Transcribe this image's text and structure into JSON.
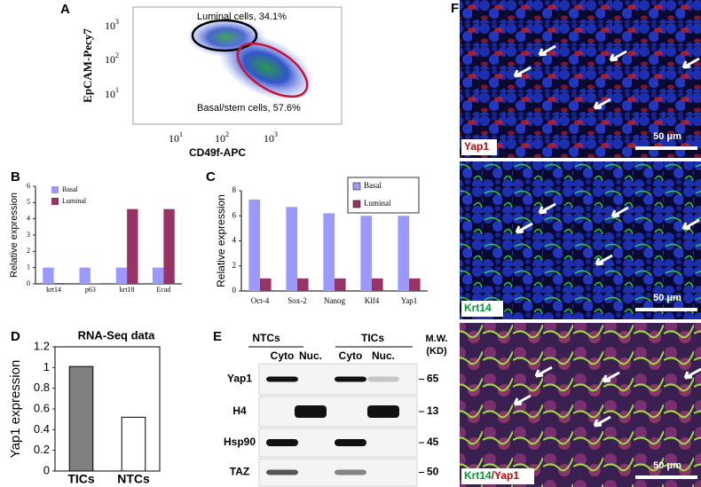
{
  "flow": {
    "label": "A",
    "y_label": "EpCAM-Pecy7",
    "x_label": "CD49f-APC",
    "ticks": [
      {
        "base": "10",
        "exp": "1"
      },
      {
        "base": "10",
        "exp": "2"
      },
      {
        "base": "10",
        "exp": "3"
      }
    ],
    "gates": [
      "Luminal cells, 34.1%",
      "Basal/stem cells, 57.6%"
    ]
  },
  "chart_data": [
    {
      "label": "B",
      "type": "bar",
      "y_label": "Relative expression",
      "categories": [
        "krt14",
        "p63",
        "krt18",
        "Ecad"
      ],
      "series": [
        {
          "name": "Basal",
          "color": "#9999ff",
          "values": [
            1.0,
            1.0,
            1.0,
            1.0
          ]
        },
        {
          "name": "Luminal",
          "color": "#993366",
          "values": [
            0.05,
            0.02,
            4.6,
            4.6
          ]
        }
      ],
      "ylim": [
        0,
        6
      ],
      "yticks": [
        0,
        1,
        2,
        3,
        4,
        5,
        6
      ]
    },
    {
      "label": "C",
      "type": "bar",
      "y_label": "Relative expression",
      "categories": [
        "Oct-4",
        "Sox-2",
        "Nanog",
        "Klf4",
        "Yap1"
      ],
      "series": [
        {
          "name": "Basal",
          "color": "#9999ff",
          "values": [
            7.3,
            6.7,
            6.2,
            6.0,
            6.0
          ]
        },
        {
          "name": "Luminal",
          "color": "#993366",
          "values": [
            1,
            1,
            1,
            1,
            1
          ]
        }
      ],
      "ylim": [
        0,
        8
      ],
      "yticks": [
        0,
        2,
        4,
        6,
        8
      ]
    },
    {
      "label": "D",
      "type": "bar",
      "title": "RNA-Seq data",
      "y_label": "Yap1 expression",
      "categories": [
        "TICs",
        "NTCs"
      ],
      "values": [
        1.01,
        0.52
      ],
      "colors": [
        "#808080",
        "#ffffff"
      ],
      "ylim": [
        0,
        1.2
      ],
      "yticks": [
        0,
        0.2,
        0.4,
        0.6,
        0.8,
        1,
        1.2
      ]
    }
  ],
  "blot": {
    "label": "E",
    "groups": [
      "NTCs",
      "TICs"
    ],
    "fractions": [
      "Cyto",
      "Nuc.",
      "Cyto",
      "Nuc."
    ],
    "mw_title": "M.W.",
    "mw_unit": "(KD)",
    "rows": [
      {
        "name": "Yap1",
        "mw": "65"
      },
      {
        "name": "H4",
        "mw": "13"
      },
      {
        "name": "Hsp90",
        "mw": "45"
      },
      {
        "name": "TAZ",
        "mw": "50"
      }
    ]
  },
  "images": {
    "label": "F",
    "panels": [
      {
        "stain": [
          {
            "text": "Yap1",
            "color": "#cc0000"
          }
        ],
        "scale": "50 μm"
      },
      {
        "stain": [
          {
            "text": "Krt14",
            "color": "#009933"
          }
        ],
        "scale": "50 μm"
      },
      {
        "stain": [
          {
            "text": "Krt14",
            "color": "#009933"
          },
          {
            "text": "/Yap1",
            "color": "#cc0000"
          }
        ],
        "scale": "50 μm"
      }
    ]
  }
}
